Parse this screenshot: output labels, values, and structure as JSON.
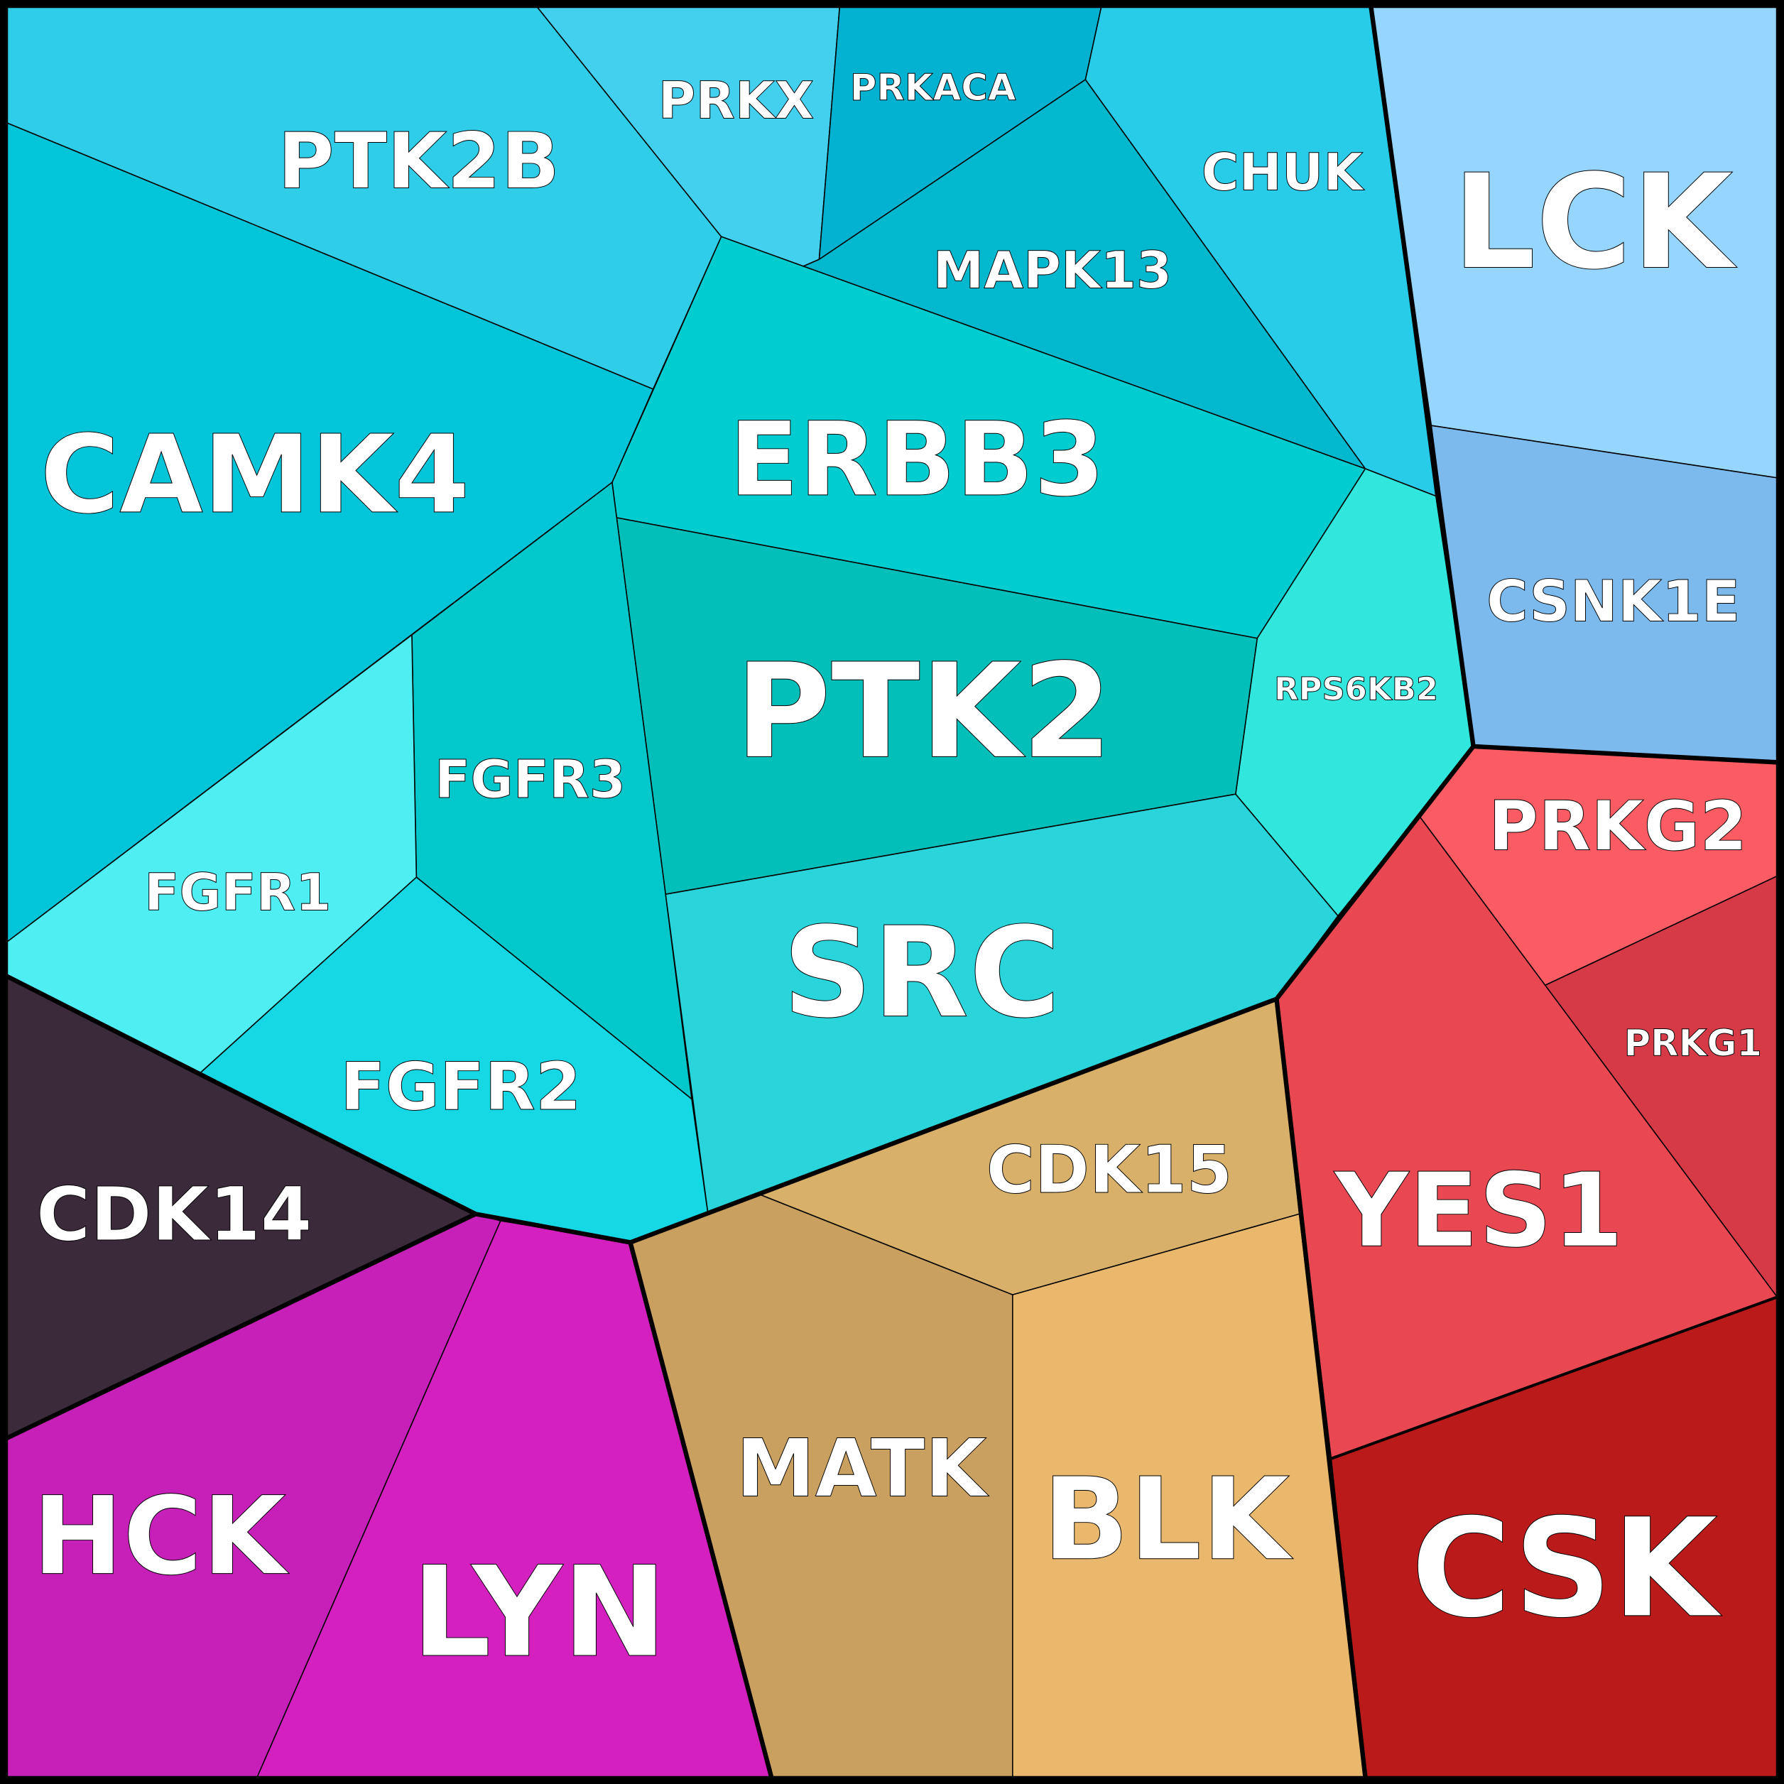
{
  "cells": [
    {
      "label": "PTK2B"
    },
    {
      "label": "PRKX"
    },
    {
      "label": "PRKACA"
    },
    {
      "label": "CHUK"
    },
    {
      "label": "MAPK13"
    },
    {
      "label": "LCK"
    },
    {
      "label": "ERBB3"
    },
    {
      "label": "CAMK4"
    },
    {
      "label": "CSNK1E"
    },
    {
      "label": "RPS6KB2"
    },
    {
      "label": "PTK2"
    },
    {
      "label": "FGFR3"
    },
    {
      "label": "FGFR1"
    },
    {
      "label": "SRC"
    },
    {
      "label": "PRKG2"
    },
    {
      "label": "PRKG1"
    },
    {
      "label": "FGFR2"
    },
    {
      "label": "CDK15"
    },
    {
      "label": "CDK14"
    },
    {
      "label": "YES1"
    },
    {
      "label": "MATK"
    },
    {
      "label": "BLK"
    },
    {
      "label": "HCK"
    },
    {
      "label": "LYN"
    },
    {
      "label": "CSK"
    }
  ]
}
